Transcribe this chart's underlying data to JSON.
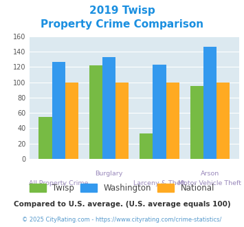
{
  "title_line1": "2019 Twisp",
  "title_line2": "Property Crime Comparison",
  "x_labels_top": [
    "",
    "Burglary",
    "",
    "Arson"
  ],
  "x_labels_bottom": [
    "All Property Crime",
    "",
    "Larceny & Theft",
    "Motor Vehicle Theft"
  ],
  "twisp": [
    55,
    122,
    33,
    95
  ],
  "washington": [
    127,
    133,
    123,
    146
  ],
  "national": [
    100,
    100,
    100,
    100
  ],
  "twisp_color": "#77bb44",
  "washington_color": "#3399ee",
  "national_color": "#ffaa22",
  "ylim": [
    0,
    160
  ],
  "yticks": [
    0,
    20,
    40,
    60,
    80,
    100,
    120,
    140,
    160
  ],
  "title_color": "#1a8fe0",
  "background_color": "#dce9f0",
  "xlabel_color": "#9988bb",
  "legend_text_color": "#444444",
  "footnote1": "Compared to U.S. average. (U.S. average equals 100)",
  "footnote2": "© 2025 CityRating.com - https://www.cityrating.com/crime-statistics/",
  "footnote1_color": "#333333",
  "footnote2_color": "#5599cc"
}
